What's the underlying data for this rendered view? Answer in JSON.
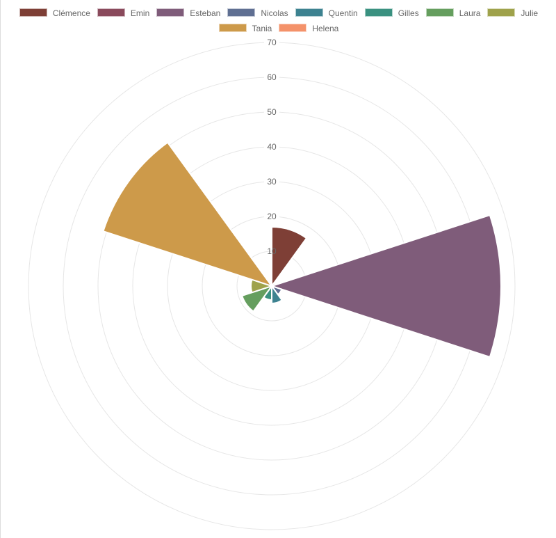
{
  "chart_data": {
    "type": "polarArea",
    "labels": [
      "Clémence",
      "Emin",
      "Esteban",
      "Nicolas",
      "Quentin",
      "Gilles",
      "Laura",
      "Julie",
      "Tania",
      "Helena"
    ],
    "values": [
      17,
      1,
      66,
      3,
      5,
      4,
      9,
      6,
      51,
      1
    ],
    "colors": [
      "#7e3f36",
      "#8a4a5c",
      "#7f5c7a",
      "#5f6f92",
      "#3d8290",
      "#3a9180",
      "#659e5e",
      "#9fa24b",
      "#cd9a4a",
      "#f4926a"
    ],
    "r_ticks": [
      10,
      20,
      30,
      40,
      50,
      60,
      70
    ],
    "r_range": [
      0,
      70
    ],
    "grid": true,
    "legend_position": "top"
  }
}
